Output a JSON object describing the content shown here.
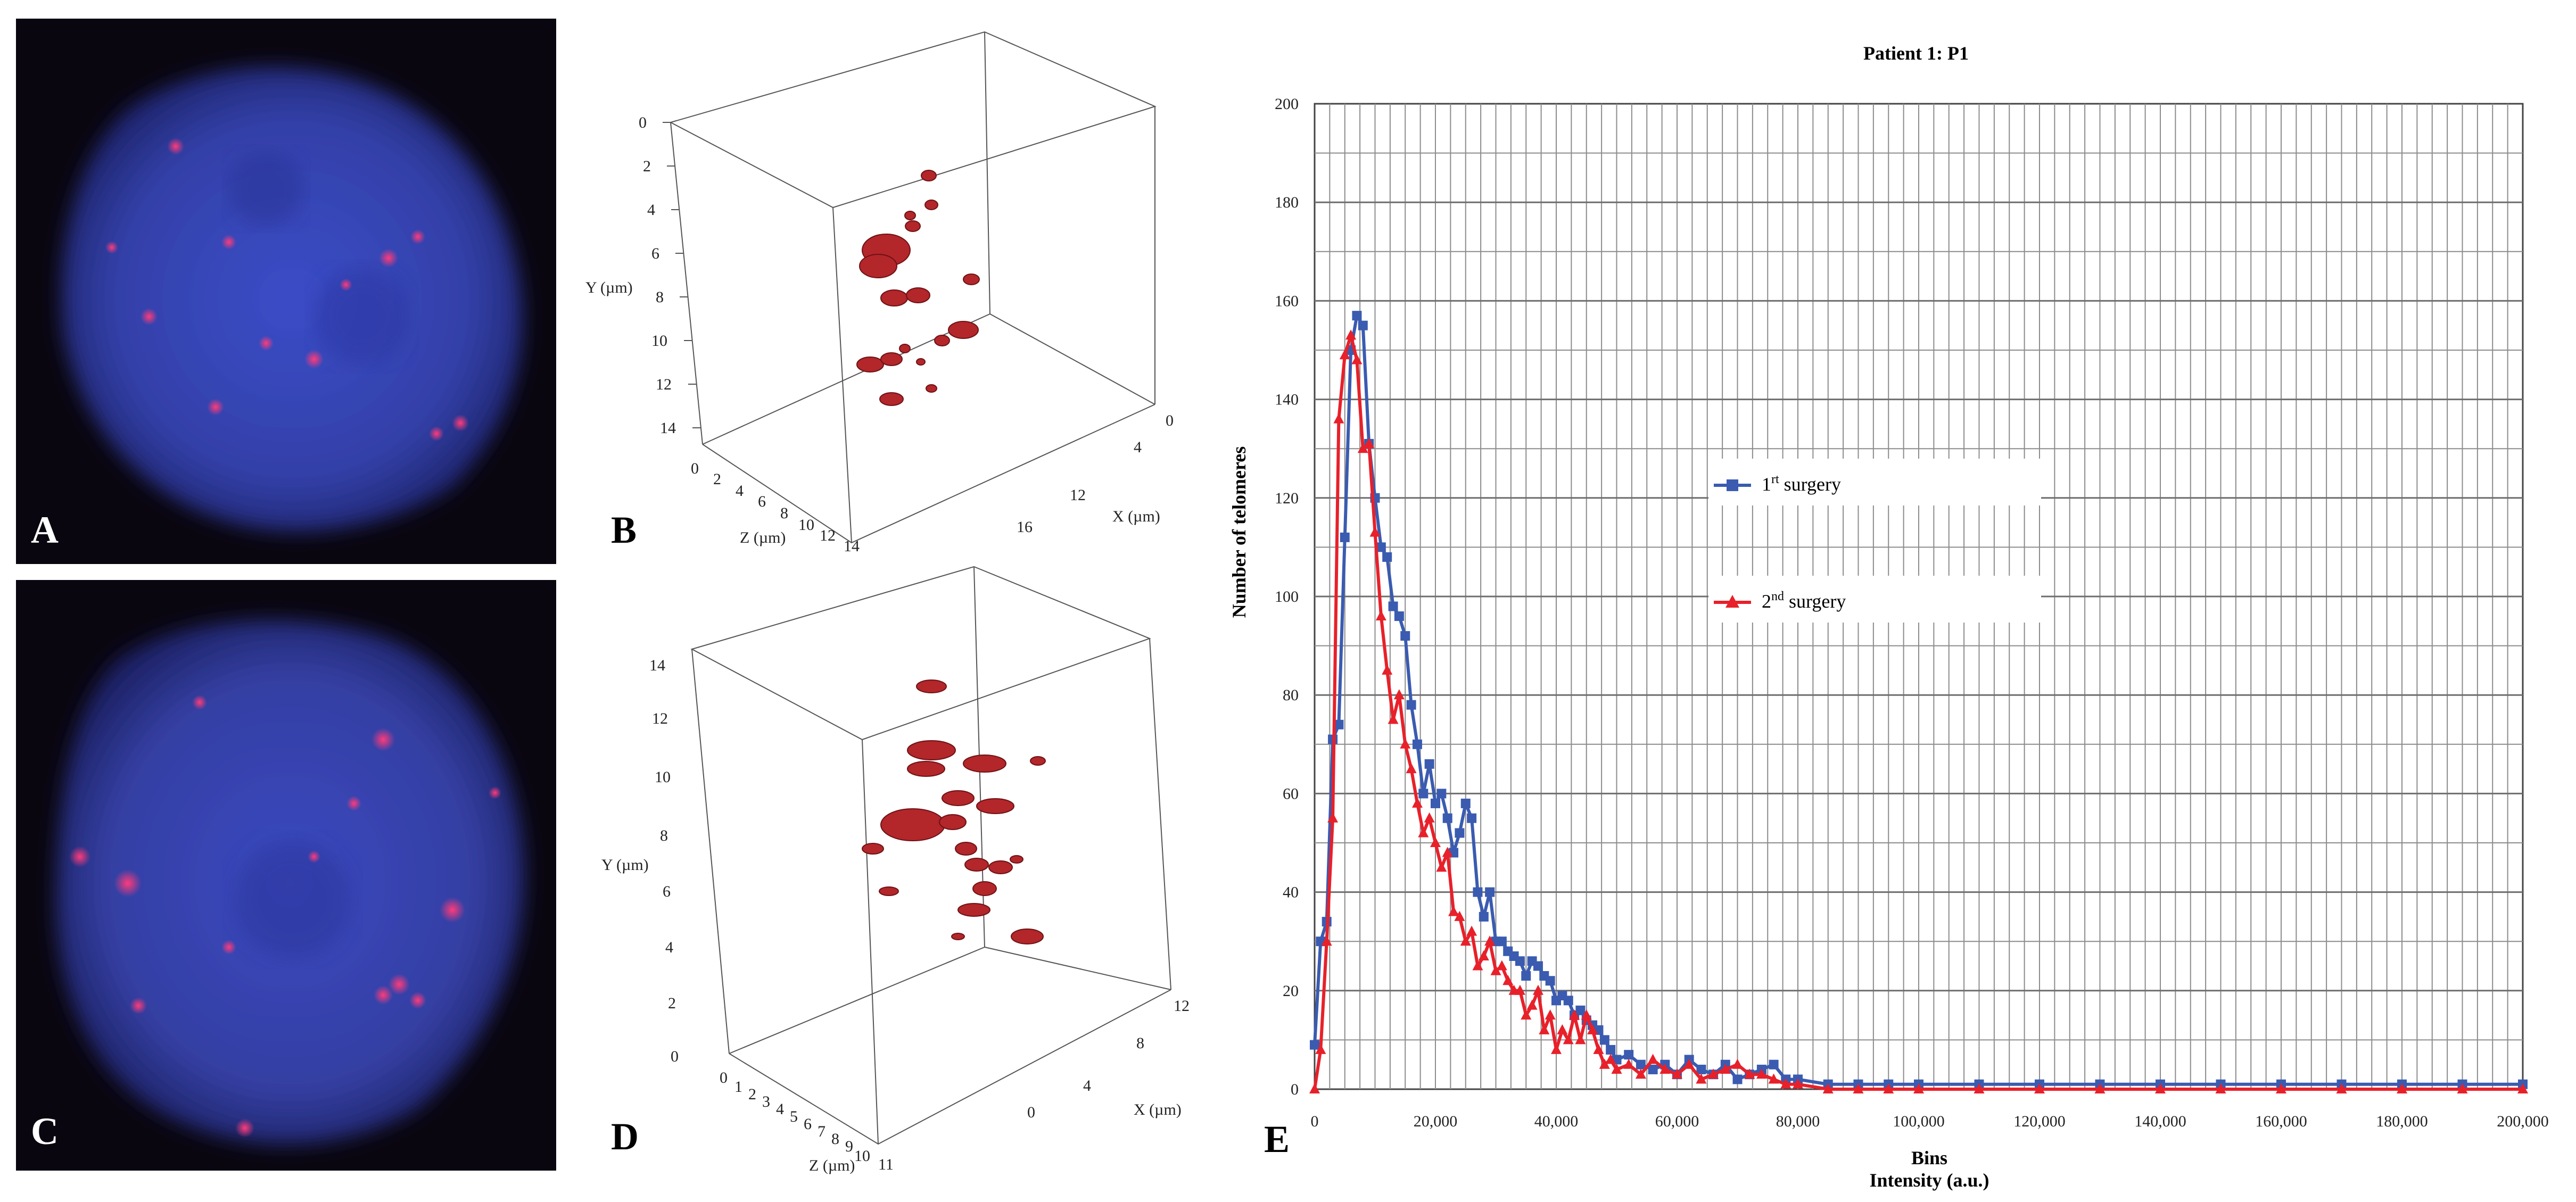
{
  "panels": {
    "A": {
      "letter": "A"
    },
    "B": {
      "letter": "B",
      "y_label": "Y (µm)",
      "z_label": "Z (µm)",
      "x_label": "X (µm)",
      "y_ticks": [
        "0",
        "2",
        "4",
        "6",
        "8",
        "10",
        "12",
        "14"
      ],
      "z_ticks": [
        "0",
        "2",
        "4",
        "6",
        "8",
        "10",
        "12",
        "14"
      ],
      "x_ticks": [
        "0",
        "4",
        "12",
        "16"
      ]
    },
    "C": {
      "letter": "C"
    },
    "D": {
      "letter": "D",
      "y_label": "Y (µm)",
      "z_label": "Z (µm)",
      "x_label": "X (µm)",
      "y_ticks": [
        "0",
        "2",
        "4",
        "6",
        "8",
        "10",
        "12",
        "14"
      ],
      "z_ticks": [
        "0",
        "1",
        "2",
        "3",
        "4",
        "5",
        "6",
        "7",
        "8",
        "9",
        "10",
        "11"
      ],
      "x_ticks": [
        "0",
        "4",
        "8",
        "12"
      ]
    },
    "E": {
      "letter": "E"
    }
  },
  "colors": {
    "series1": "#3a5bb0",
    "series2": "#e8202a",
    "grid": "#8c8c8c"
  },
  "chart_data": {
    "type": "line",
    "title": "Patient  1: P1",
    "xlabel": "Bins",
    "xlabel2": "Intensity  (a.u.)",
    "ylabel": "Number  of     telomeres",
    "xlim": [
      0,
      200000
    ],
    "ylim": [
      0,
      200
    ],
    "x_ticks": [
      "0",
      "20,000",
      "40,000",
      "60,000",
      "80,000",
      "100,000",
      "120,000",
      "140,000",
      "160,000",
      "180,000",
      "200,000"
    ],
    "y_ticks": [
      "0",
      "20",
      "40",
      "60",
      "80",
      "100",
      "120",
      "140",
      "160",
      "180",
      "200"
    ],
    "series": [
      {
        "name": "1rt surgery",
        "legend_main": "1",
        "legend_sup": "rt",
        "legend_rest": " surgery",
        "x": [
          0,
          1000,
          2000,
          3000,
          4000,
          5000,
          6000,
          7000,
          8000,
          9000,
          10000,
          11000,
          12000,
          13000,
          14000,
          15000,
          16000,
          17000,
          18000,
          19000,
          20000,
          21000,
          22000,
          23000,
          24000,
          25000,
          26000,
          27000,
          28000,
          29000,
          30000,
          31000,
          32000,
          33000,
          34000,
          35000,
          36000,
          37000,
          38000,
          39000,
          40000,
          41000,
          42000,
          43000,
          44000,
          45000,
          46000,
          47000,
          48000,
          49000,
          50000,
          52000,
          54000,
          56000,
          58000,
          60000,
          62000,
          64000,
          66000,
          68000,
          70000,
          72000,
          74000,
          76000,
          78000,
          80000,
          85000,
          90000,
          95000,
          100000,
          110000,
          120000,
          130000,
          140000,
          150000,
          160000,
          170000,
          180000,
          190000,
          200000
        ],
        "y": [
          9,
          30,
          34,
          71,
          74,
          112,
          150,
          157,
          155,
          131,
          120,
          110,
          108,
          98,
          96,
          92,
          78,
          70,
          60,
          66,
          58,
          60,
          55,
          48,
          52,
          58,
          55,
          40,
          35,
          40,
          30,
          30,
          28,
          27,
          26,
          23,
          26,
          25,
          23,
          22,
          18,
          19,
          18,
          15,
          16,
          14,
          13,
          12,
          10,
          8,
          6,
          7,
          5,
          4,
          5,
          3,
          6,
          4,
          3,
          5,
          2,
          3,
          4,
          5,
          2,
          2,
          1,
          1,
          1,
          1,
          1,
          1,
          1,
          1,
          1,
          1,
          1,
          1,
          1,
          1
        ]
      },
      {
        "name": "2nd surgery",
        "legend_main": "2",
        "legend_sup": "nd",
        "legend_rest": " surgery",
        "x": [
          0,
          1000,
          2000,
          3000,
          4000,
          5000,
          6000,
          7000,
          8000,
          9000,
          10000,
          11000,
          12000,
          13000,
          14000,
          15000,
          16000,
          17000,
          18000,
          19000,
          20000,
          21000,
          22000,
          23000,
          24000,
          25000,
          26000,
          27000,
          28000,
          29000,
          30000,
          31000,
          32000,
          33000,
          34000,
          35000,
          36000,
          37000,
          38000,
          39000,
          40000,
          41000,
          42000,
          43000,
          44000,
          45000,
          46000,
          47000,
          48000,
          49000,
          50000,
          52000,
          54000,
          56000,
          58000,
          60000,
          62000,
          64000,
          66000,
          68000,
          70000,
          72000,
          74000,
          76000,
          78000,
          80000,
          85000,
          90000,
          95000,
          100000,
          110000,
          120000,
          130000,
          140000,
          150000,
          160000,
          170000,
          180000,
          190000,
          200000
        ],
        "y": [
          0,
          8,
          30,
          55,
          136,
          149,
          153,
          148,
          130,
          131,
          113,
          96,
          85,
          75,
          80,
          70,
          65,
          58,
          52,
          55,
          50,
          45,
          48,
          36,
          35,
          30,
          32,
          25,
          27,
          30,
          24,
          25,
          22,
          20,
          20,
          15,
          17,
          20,
          12,
          15,
          8,
          12,
          10,
          15,
          10,
          15,
          12,
          8,
          5,
          6,
          4,
          5,
          3,
          6,
          4,
          3,
          5,
          2,
          3,
          4,
          5,
          3,
          3,
          2,
          1,
          1,
          0,
          0,
          0,
          0,
          0,
          0,
          0,
          0,
          0,
          0,
          0,
          0,
          0,
          0
        ]
      }
    ]
  }
}
